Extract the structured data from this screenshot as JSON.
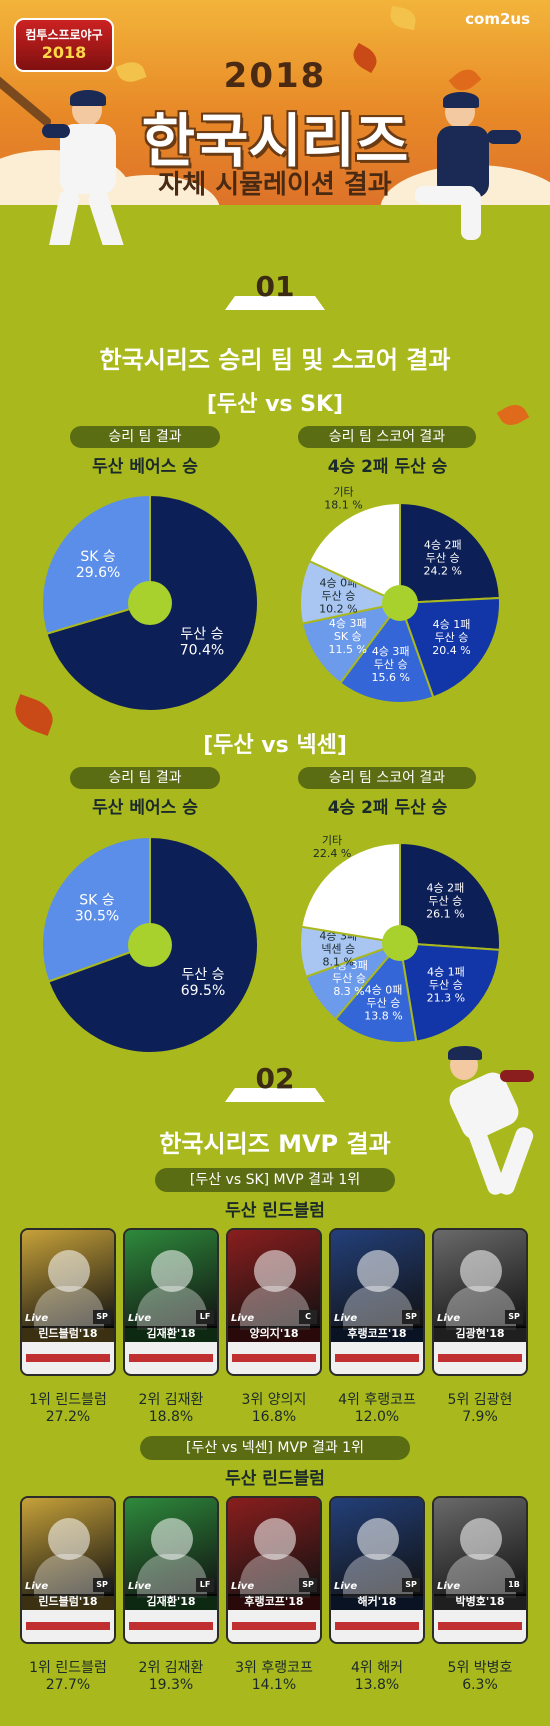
{
  "header": {
    "game_logo_line1": "컴투스프로야구",
    "game_logo_line2": "2018",
    "brand": "com2us",
    "year": "2018",
    "title": "한국시리즈",
    "subtitle": "자체 시뮬레이션 결과"
  },
  "section1": {
    "number": "01",
    "title": "한국시리즈 승리 팀 및 스코어 결과",
    "matches": [
      {
        "title": "[두산 vs SK]",
        "win_pill": "승리 팀 결과",
        "win_headline": "두산 베어스 승",
        "score_pill": "승리 팀 스코어 결과",
        "score_headline": "4승 2패 두산 승"
      },
      {
        "title": "[두산 vs 넥센]",
        "win_pill": "승리 팀 결과",
        "win_headline": "두산 베어스 승",
        "score_pill": "승리 팀 스코어 결과",
        "score_headline": "4승 2패 두산 승"
      }
    ]
  },
  "chart_data": [
    {
      "type": "pie",
      "title": "두산 베어스 승",
      "slices": [
        {
          "label": "두산 승",
          "value": 70.4,
          "color": "#0d1f57"
        },
        {
          "label": "SK 승",
          "value": 29.6,
          "color": "#5b8ee8"
        }
      ]
    },
    {
      "type": "pie",
      "title": "4승 2패 두산 승",
      "slices": [
        {
          "label": "4승 2패 두산 승",
          "value": 24.2,
          "color": "#0d1f57"
        },
        {
          "label": "4승 1패 두산 승",
          "value": 20.4,
          "color": "#1236a8"
        },
        {
          "label": "4승 3패 두산 승",
          "value": 15.6,
          "color": "#3466d8"
        },
        {
          "label": "4승 3패 SK 승",
          "value": 11.5,
          "color": "#6d9bec"
        },
        {
          "label": "4승 0패 두산 승",
          "value": 10.2,
          "color": "#a9c5f2"
        },
        {
          "label": "기타",
          "value": 18.1,
          "color": "#ffffff"
        }
      ]
    },
    {
      "type": "pie",
      "title": "두산 베어스 승",
      "slices": [
        {
          "label": "두산 승",
          "value": 69.5,
          "color": "#0d1f57"
        },
        {
          "label": "SK 승",
          "value": 30.5,
          "color": "#5b8ee8"
        }
      ]
    },
    {
      "type": "pie",
      "title": "4승 2패 두산 승",
      "slices": [
        {
          "label": "4승 2패 두산 승",
          "value": 26.1,
          "color": "#0d1f57"
        },
        {
          "label": "4승 1패 두산 승",
          "value": 21.3,
          "color": "#1236a8"
        },
        {
          "label": "4승 0패 두산 승",
          "value": 13.8,
          "color": "#3466d8"
        },
        {
          "label": "4승 3패 두산 승",
          "value": 8.3,
          "color": "#6d9bec"
        },
        {
          "label": "4승 3패 넥센 승",
          "value": 8.1,
          "color": "#a9c5f2"
        },
        {
          "label": "기타",
          "value": 22.4,
          "color": "#ffffff"
        }
      ]
    }
  ],
  "section2": {
    "number": "02",
    "title": "한국시리즈 MVP 결과",
    "groups": [
      {
        "pill": "[두산 vs SK] MVP 결과 1위",
        "headline": "두산 린드블럼",
        "cards": [
          {
            "name": "린드블럼'18",
            "pos": "SP",
            "bg": "#c7a23a",
            "rank": "1위 린드블럼",
            "pct": "27.2%"
          },
          {
            "name": "김재환'18",
            "pos": "LF",
            "bg": "#2e8a3c",
            "rank": "2위 김재환",
            "pct": "18.8%"
          },
          {
            "name": "양의지'18",
            "pos": "C",
            "bg": "#8a1e1e",
            "rank": "3위 양의지",
            "pct": "16.8%"
          },
          {
            "name": "후랭코프'18",
            "pos": "SP",
            "bg": "#23407a",
            "rank": "4위 후랭코프",
            "pct": "12.0%"
          },
          {
            "name": "김광현'18",
            "pos": "SP",
            "bg": "#6a6a6a",
            "rank": "5위 김광현",
            "pct": "7.9%"
          }
        ]
      },
      {
        "pill": "[두산 vs 넥센] MVP 결과 1위",
        "headline": "두산 린드블럼",
        "cards": [
          {
            "name": "린드블럼'18",
            "pos": "SP",
            "bg": "#c7a23a",
            "rank": "1위 린드블럼",
            "pct": "27.7%"
          },
          {
            "name": "김재환'18",
            "pos": "LF",
            "bg": "#2e8a3c",
            "rank": "2위 김재환",
            "pct": "19.3%"
          },
          {
            "name": "후랭코프'18",
            "pos": "SP",
            "bg": "#8a1e1e",
            "rank": "3위 후랭코프",
            "pct": "14.1%"
          },
          {
            "name": "해커'18",
            "pos": "SP",
            "bg": "#23407a",
            "rank": "4위 해커",
            "pct": "13.8%"
          },
          {
            "name": "박병호'18",
            "pos": "1B",
            "bg": "#6a6a6a",
            "rank": "5위 박병호",
            "pct": "6.3%"
          }
        ]
      }
    ]
  }
}
